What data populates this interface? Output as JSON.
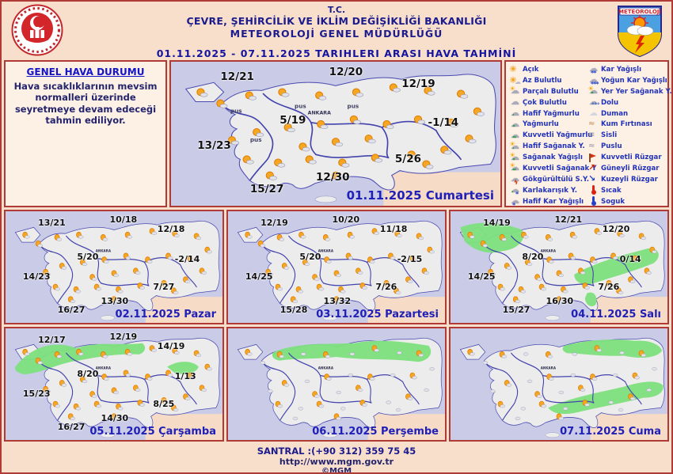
{
  "header": {
    "line1": "T.C.",
    "line2": "ÇEVRE, ŞEHİRCİLİK VE İKLİM DEĞİŞİKLİĞİ BAKANLIĞI",
    "line3": "METEOROLOJİ GENEL MÜDÜRLÜĞÜ",
    "date_range": "01.11.2025  -  07.11.2025    TARIHLERI  ARASI  HAVA  TAHMİNİ",
    "right_logo_text": "METEOROLOJİ"
  },
  "general": {
    "title": "GENEL HAVA DURUMU",
    "text": "Hava sıcaklıklarının mevsim normalleri üzerinde seyretmeye devam edeceği tahmin ediliyor."
  },
  "legend": {
    "left": [
      {
        "icon": "acik",
        "label": "Açık"
      },
      {
        "icon": "az-bulutlu",
        "label": "Az Bulutlu"
      },
      {
        "icon": "parcali-bulutlu",
        "label": "Parçalı Bulutlu"
      },
      {
        "icon": "cok-bulutlu",
        "label": "Çok Bulutlu"
      },
      {
        "icon": "hafif-yagmurlu",
        "label": "Hafif Yağmurlu"
      },
      {
        "icon": "yagmurlu",
        "label": "Yağmurlu"
      },
      {
        "icon": "kuvvetli-yagmurlu",
        "label": "Kuvvetli Yağmurlu"
      },
      {
        "icon": "hafif-saganak",
        "label": "Hafif Sağanak Y."
      },
      {
        "icon": "saganak",
        "label": "Sağanak Yağışlı"
      },
      {
        "icon": "kuvvetli-saganak",
        "label": "Kuvvetli Sağanak Y"
      },
      {
        "icon": "gokgurultulu-sy",
        "label": "Gökgürültülü S.Y."
      },
      {
        "icon": "karla-karisik",
        "label": "Karlakarışık Y."
      },
      {
        "icon": "hafif-kar",
        "label": "Hafif Kar Yağışlı"
      }
    ],
    "right": [
      {
        "icon": "kar",
        "label": "Kar Yağışlı"
      },
      {
        "icon": "yogun-kar",
        "label": "Yoğun Kar Yağışlı"
      },
      {
        "icon": "yer-yer-saganak",
        "label": "Yer Yer Sağanak Y."
      },
      {
        "icon": "dolu",
        "label": "Dolu"
      },
      {
        "icon": "duman",
        "label": "Duman"
      },
      {
        "icon": "kum-firtinasi",
        "label": "Kum Fırtınası"
      },
      {
        "icon": "sisli",
        "label": "Sisli"
      },
      {
        "icon": "puslu",
        "label": "Puslu"
      },
      {
        "icon": "kuvvetli-ruzgar",
        "label": "Kuvvetli Rüzgar"
      },
      {
        "icon": "guneyli-ruzgar",
        "label": "Güneyli Rüzgar"
      },
      {
        "icon": "kuzeyli-ruzgar",
        "label": "Kuzeyli Rüzgar"
      },
      {
        "icon": "sicak",
        "label": "Sıcak"
      },
      {
        "icon": "soguk",
        "label": "Soguk"
      }
    ]
  },
  "map_common": {
    "capital_label": "ANKARA",
    "mist_label": "pus"
  },
  "maps": [
    {
      "date_label": "01.11.2025 Cumartesi",
      "temps": [
        {
          "region": "nw",
          "value": "12/21"
        },
        {
          "region": "n",
          "value": "12/20"
        },
        {
          "region": "ne",
          "value": "12/19"
        },
        {
          "region": "c",
          "value": "5/19"
        },
        {
          "region": "e",
          "value": "-1/14"
        },
        {
          "region": "w",
          "value": "13/23"
        },
        {
          "region": "se",
          "value": "5/26"
        },
        {
          "region": "s",
          "value": "12/30"
        },
        {
          "region": "sw",
          "value": "15/27"
        }
      ],
      "rain_areas": []
    },
    {
      "date_label": "02.11.2025 Pazar",
      "temps": [
        {
          "region": "nw",
          "value": "13/21"
        },
        {
          "region": "n",
          "value": "10/18"
        },
        {
          "region": "ne",
          "value": "12/18"
        },
        {
          "region": "c",
          "value": "5/20"
        },
        {
          "region": "e",
          "value": "-2/14"
        },
        {
          "region": "w",
          "value": "14/23"
        },
        {
          "region": "se",
          "value": "7/27"
        },
        {
          "region": "s",
          "value": "13/30"
        },
        {
          "region": "sw",
          "value": "16/27"
        }
      ],
      "rain_areas": []
    },
    {
      "date_label": "03.11.2025 Pazartesi",
      "temps": [
        {
          "region": "nw",
          "value": "12/19"
        },
        {
          "region": "n",
          "value": "10/20"
        },
        {
          "region": "ne",
          "value": "11/18"
        },
        {
          "region": "c",
          "value": "5/20"
        },
        {
          "region": "e",
          "value": "-2/15"
        },
        {
          "region": "w",
          "value": "14/25"
        },
        {
          "region": "se",
          "value": "7/26"
        },
        {
          "region": "s",
          "value": "13/32"
        },
        {
          "region": "sw",
          "value": "15/28"
        }
      ],
      "rain_areas": []
    },
    {
      "date_label": "04.11.2025 Salı",
      "temps": [
        {
          "region": "nw",
          "value": "14/19"
        },
        {
          "region": "n",
          "value": "12/21"
        },
        {
          "region": "ne",
          "value": "12/20"
        },
        {
          "region": "c",
          "value": "8/20"
        },
        {
          "region": "e",
          "value": "0/14"
        },
        {
          "region": "w",
          "value": "14/25"
        },
        {
          "region": "se",
          "value": "7/26"
        },
        {
          "region": "s",
          "value": "16/30"
        },
        {
          "region": "sw",
          "value": "15/27"
        }
      ],
      "rain_areas": [
        "marmara",
        "southeast-band",
        "hatay"
      ]
    },
    {
      "date_label": "05.11.2025 Çarşamba",
      "temps": [
        {
          "region": "nw",
          "value": "12/17"
        },
        {
          "region": "n",
          "value": "12/19"
        },
        {
          "region": "ne",
          "value": "14/19"
        },
        {
          "region": "c",
          "value": "8/20"
        },
        {
          "region": "e",
          "value": "1/13"
        },
        {
          "region": "w",
          "value": "15/23"
        },
        {
          "region": "se",
          "value": "8/25"
        },
        {
          "region": "s",
          "value": "14/30"
        },
        {
          "region": "sw",
          "value": "16/27"
        }
      ],
      "rain_areas": [
        "northwest-north-band",
        "east-spot"
      ]
    },
    {
      "date_label": "06.11.2025 Perşembe",
      "temps": [],
      "rain_areas": [
        "black-sea-coast-band"
      ]
    },
    {
      "date_label": "07.11.2025 Cuma",
      "temps": [],
      "rain_areas": [
        "northeast-coast-band",
        "east-southeast-band"
      ]
    }
  ],
  "footer": {
    "phone": "SANTRAL :(+90 312) 359 75 45",
    "url": "http://www.mgm.gov.tr",
    "copyright": "©MGM"
  }
}
